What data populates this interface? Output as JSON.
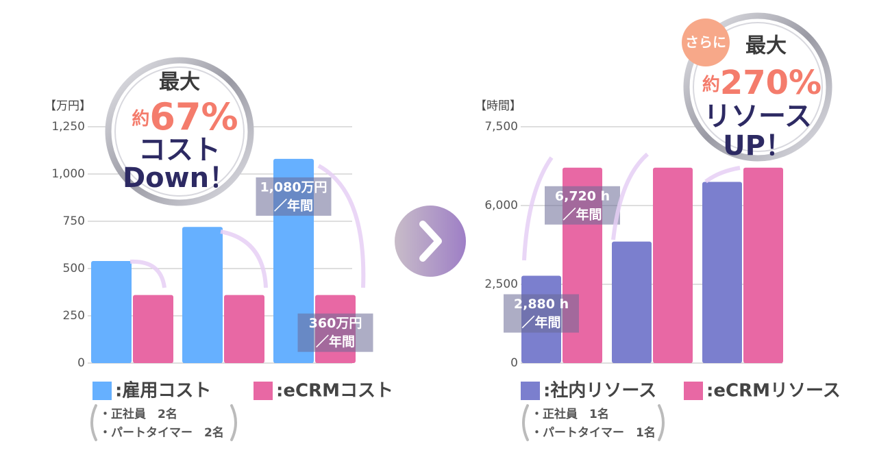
{
  "chart_data": [
    {
      "type": "bar",
      "unit_label": "【万円】",
      "categories": [
        null,
        null,
        null
      ],
      "series": [
        {
          "name": ":雇用コスト",
          "color": "#66b0ff",
          "values": [
            540,
            720,
            1080
          ],
          "value_labels": [
            null,
            null,
            "1,080万円"
          ]
        },
        {
          "name": ":eCRMコスト",
          "color": "#e868a4",
          "values": [
            360,
            360,
            360
          ],
          "value_labels": [
            null,
            null,
            "360万円"
          ]
        }
      ],
      "value_label_suffix": "／年間",
      "ylim": [
        0,
        1250
      ],
      "yticks": [
        0,
        250,
        500,
        750,
        {
          "value": 1000,
          "label": "1,000"
        },
        {
          "value": 1250,
          "label": "1,250"
        }
      ],
      "grid": true,
      "badge": {
        "lead": "最大",
        "prefix": "約",
        "figure": "67%",
        "lines": [
          "コスト",
          "Down！"
        ]
      },
      "notes": [
        "・正社員　2名",
        "・パートタイマー　2名"
      ]
    },
    {
      "type": "bar",
      "unit_label": "【時間】",
      "categories": [
        null,
        null,
        null
      ],
      "series": [
        {
          "name": ":社内リソース",
          "color": "#7b7fce",
          "values": [
            2880,
            4400,
            6450
          ],
          "value_labels": [
            "2,880 h",
            null,
            null
          ]
        },
        {
          "name": ":eCRMリソース",
          "color": "#e868a4",
          "values": [
            6720,
            6720,
            6720
          ],
          "value_labels": [
            "6,720 h",
            null,
            null
          ]
        }
      ],
      "value_label_suffix": "／年間",
      "scale": "piecewise",
      "ylim": [
        0,
        7500
      ],
      "yticks": [
        0,
        {
          "value": 2500,
          "label": "2,500"
        },
        {
          "value": 6000,
          "label": "6,000"
        },
        {
          "value": 7500,
          "label": "7,500"
        }
      ],
      "grid": true,
      "badge": {
        "tag": "さらに",
        "lead": "最大",
        "prefix": "約",
        "figure": "270%",
        "lines": [
          "リソース",
          "UP！"
        ]
      },
      "notes": [
        "・正社員　1名",
        "・パートタイマー　1名"
      ]
    }
  ]
}
